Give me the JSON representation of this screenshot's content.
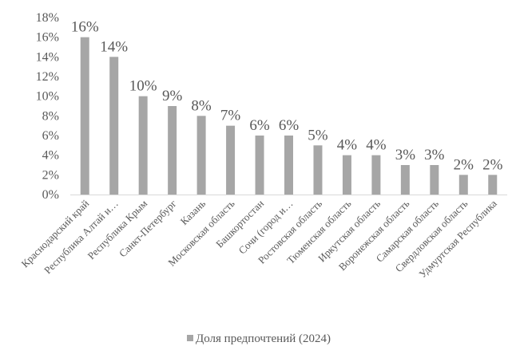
{
  "chart_data": {
    "type": "bar",
    "categories": [
      "Краснодарский край",
      "Республика Алтай и…",
      "Республика Крым",
      "Санкт-Петербург",
      "Казань",
      "Московская область",
      "Башкортостан",
      "Сочи (город и…",
      "Ростовская область",
      "Тюменская область",
      "Иркутская область",
      "Воронежская область",
      "Самарская область",
      "Свердловская область",
      "Удмуртская Республика"
    ],
    "series": [
      {
        "name": "Доля предпочтений (2024)",
        "values": [
          16,
          14,
          10,
          9,
          8,
          7,
          6,
          6,
          5,
          4,
          4,
          3,
          3,
          2,
          2
        ],
        "data_labels": [
          "16%",
          "14%",
          "10%",
          "9%",
          "8%",
          "7%",
          "6%",
          "6%",
          "5%",
          "4%",
          "4%",
          "3%",
          "3%",
          "2%",
          "2%"
        ]
      }
    ],
    "y_ticks": [
      "0%",
      "2%",
      "4%",
      "6%",
      "8%",
      "10%",
      "12%",
      "14%",
      "16%",
      "18%"
    ],
    "ylim": [
      0,
      18
    ],
    "grid": false,
    "legend": "bottom",
    "colors": {
      "bar": "#a6a6a6",
      "axis": "#d9d9d9",
      "text": "#595959"
    }
  }
}
